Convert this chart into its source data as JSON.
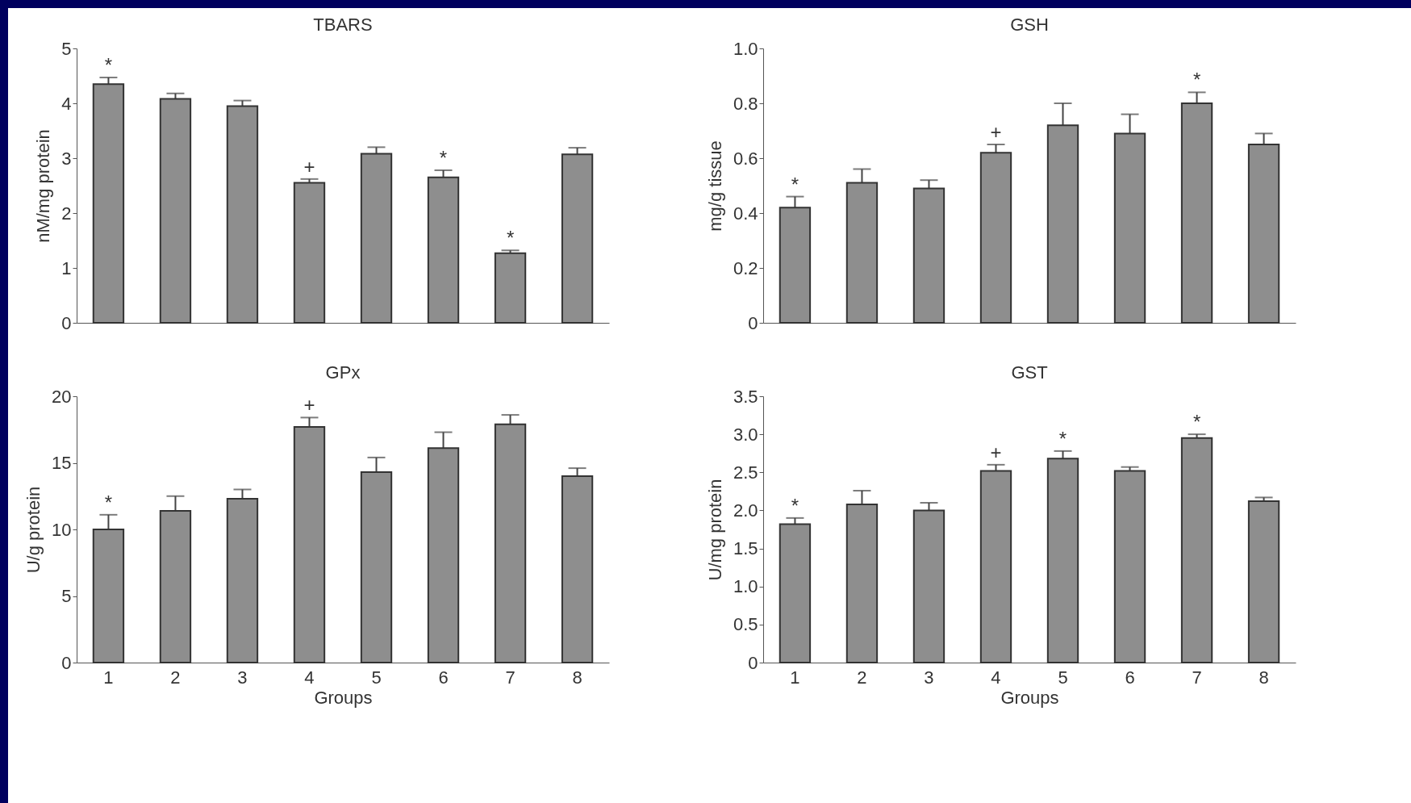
{
  "chart_data": [
    {
      "type": "bar",
      "title": "TBARS",
      "ylabel": "nM/mg protein",
      "categories": [
        "1",
        "2",
        "3",
        "4",
        "5",
        "6",
        "7",
        "8"
      ],
      "values": [
        4.35,
        4.08,
        3.95,
        2.55,
        3.08,
        2.65,
        1.27,
        3.07
      ],
      "errors": [
        0.12,
        0.1,
        0.1,
        0.07,
        0.12,
        0.13,
        0.05,
        0.12
      ],
      "color": "#8e8e8e",
      "ylim": [
        0,
        5
      ],
      "yticks": [
        0,
        1,
        2,
        3,
        4,
        5
      ],
      "grid": false,
      "tick_labels": "y",
      "annotations": [
        {
          "text": "*",
          "x": "1",
          "y": 4.35
        },
        {
          "text": "+",
          "x": "4",
          "y": 2.55
        },
        {
          "text": "*",
          "x": "6",
          "y": 2.65
        },
        {
          "text": "*",
          "x": "7",
          "y": 1.27
        }
      ]
    },
    {
      "type": "bar",
      "title": "GSH",
      "ylabel": "mg/g  tissue",
      "categories": [
        "1",
        "2",
        "3",
        "4",
        "5",
        "6",
        "7",
        "8"
      ],
      "values": [
        0.42,
        0.51,
        0.49,
        0.62,
        0.72,
        0.69,
        0.8,
        0.65
      ],
      "errors": [
        0.04,
        0.05,
        0.03,
        0.03,
        0.08,
        0.07,
        0.04,
        0.04
      ],
      "color": "#8e8e8e",
      "ylim": [
        0,
        1
      ],
      "yticks": [
        0,
        {
          "value": 0.2,
          "label": "0.2"
        },
        {
          "value": 0.4,
          "label": "0.4"
        },
        {
          "value": 0.6,
          "label": "0.6"
        },
        {
          "value": 0.8,
          "label": "0.8"
        },
        {
          "value": 1,
          "label": "1.0"
        }
      ],
      "grid": false,
      "tick_labels": "y",
      "annotations": [
        {
          "text": "*",
          "x": "1",
          "y": 0.42
        },
        {
          "text": "+",
          "x": "4",
          "y": 0.62
        },
        {
          "text": "*",
          "x": "7",
          "y": 0.8
        }
      ]
    },
    {
      "type": "bar",
      "title": "GPx",
      "xlabel": "Groups",
      "ylabel": "U/g  protein",
      "categories": [
        "1",
        "2",
        "3",
        "4",
        "5",
        "6",
        "7",
        "8"
      ],
      "values": [
        10.0,
        11.4,
        12.3,
        17.7,
        14.3,
        16.1,
        17.9,
        14.0
      ],
      "errors": [
        1.1,
        1.1,
        0.7,
        0.7,
        1.1,
        1.2,
        0.7,
        0.6
      ],
      "color": "#8e8e8e",
      "ylim": [
        0,
        20
      ],
      "yticks": [
        0,
        5,
        10,
        15,
        20
      ],
      "grid": false,
      "annotations": [
        {
          "text": "*",
          "x": "1",
          "y": 10.0
        },
        {
          "text": "+",
          "x": "4",
          "y": 17.7
        }
      ]
    },
    {
      "type": "bar",
      "title": "GST",
      "xlabel": "Groups",
      "ylabel": "U/mg  protein",
      "categories": [
        "1",
        "2",
        "3",
        "4",
        "5",
        "6",
        "7",
        "8"
      ],
      "values": [
        1.82,
        2.08,
        2.0,
        2.52,
        2.68,
        2.52,
        2.95,
        2.12
      ],
      "errors": [
        0.08,
        0.18,
        0.1,
        0.08,
        0.1,
        0.05,
        0.05,
        0.05
      ],
      "color": "#8e8e8e",
      "ylim": [
        0,
        3.5
      ],
      "yticks": [
        0,
        {
          "value": 0.5,
          "label": "0.5"
        },
        {
          "value": 1,
          "label": "1.0"
        },
        {
          "value": 1.5,
          "label": "1.5"
        },
        {
          "value": 2,
          "label": "2.0"
        },
        {
          "value": 2.5,
          "label": "2.5"
        },
        {
          "value": 3,
          "label": "3.0"
        },
        {
          "value": 3.5,
          "label": "3.5"
        }
      ],
      "grid": false,
      "annotations": [
        {
          "text": "*",
          "x": "1",
          "y": 1.82
        },
        {
          "text": "+",
          "x": "4",
          "y": 2.52
        },
        {
          "text": "*",
          "x": "5",
          "y": 2.68
        },
        {
          "text": "*",
          "x": "7",
          "y": 2.95
        }
      ]
    }
  ]
}
